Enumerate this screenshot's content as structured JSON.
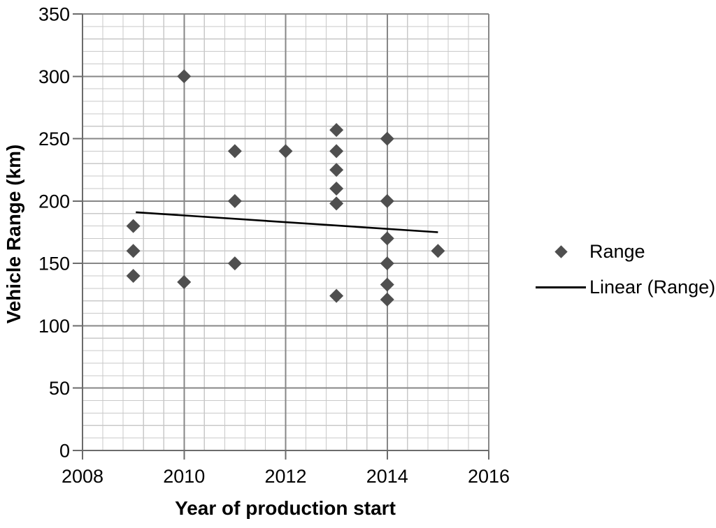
{
  "chart_data": {
    "type": "scatter",
    "title": "",
    "xlabel": "Year of production start",
    "ylabel": "Vehicle Range (km)",
    "xlim": [
      2008,
      2016
    ],
    "ylim": [
      0,
      350
    ],
    "x_major_ticks": [
      2008,
      2010,
      2012,
      2014,
      2016
    ],
    "y_major_ticks": [
      0,
      50,
      100,
      150,
      200,
      250,
      300,
      350
    ],
    "x_minor_step": 0.4,
    "y_minor_step": 10,
    "grid": {
      "major": true,
      "minor": true
    },
    "series": [
      {
        "name": "Range",
        "type": "scatter",
        "marker": "diamond",
        "color": "#4f4f4f",
        "points": [
          [
            2009,
            180
          ],
          [
            2009,
            160
          ],
          [
            2009,
            140
          ],
          [
            2010,
            300
          ],
          [
            2010,
            135
          ],
          [
            2011,
            240
          ],
          [
            2011,
            200
          ],
          [
            2011,
            150
          ],
          [
            2012,
            240
          ],
          [
            2013,
            257
          ],
          [
            2013,
            240
          ],
          [
            2013,
            225
          ],
          [
            2013,
            210
          ],
          [
            2013,
            198
          ],
          [
            2013,
            124
          ],
          [
            2014,
            250
          ],
          [
            2014,
            200
          ],
          [
            2014,
            170
          ],
          [
            2014,
            150
          ],
          [
            2014,
            133
          ],
          [
            2014,
            121
          ],
          [
            2015,
            160
          ]
        ]
      },
      {
        "name": "Linear (Range)",
        "type": "line",
        "color": "#000000",
        "points": [
          [
            2009.05,
            191
          ],
          [
            2015.0,
            175
          ]
        ]
      }
    ],
    "legend": {
      "position": "right",
      "entries": [
        {
          "label": "Range",
          "swatch": "diamond"
        },
        {
          "label": "Linear (Range)",
          "swatch": "line"
        }
      ]
    }
  },
  "colors": {
    "marker": "#4f4f4f",
    "trendline": "#000000",
    "grid_minor": "#c9c9c9",
    "grid_major": "#878787",
    "axis": "#6b6b6b",
    "text": "#000000",
    "background": "#ffffff"
  }
}
